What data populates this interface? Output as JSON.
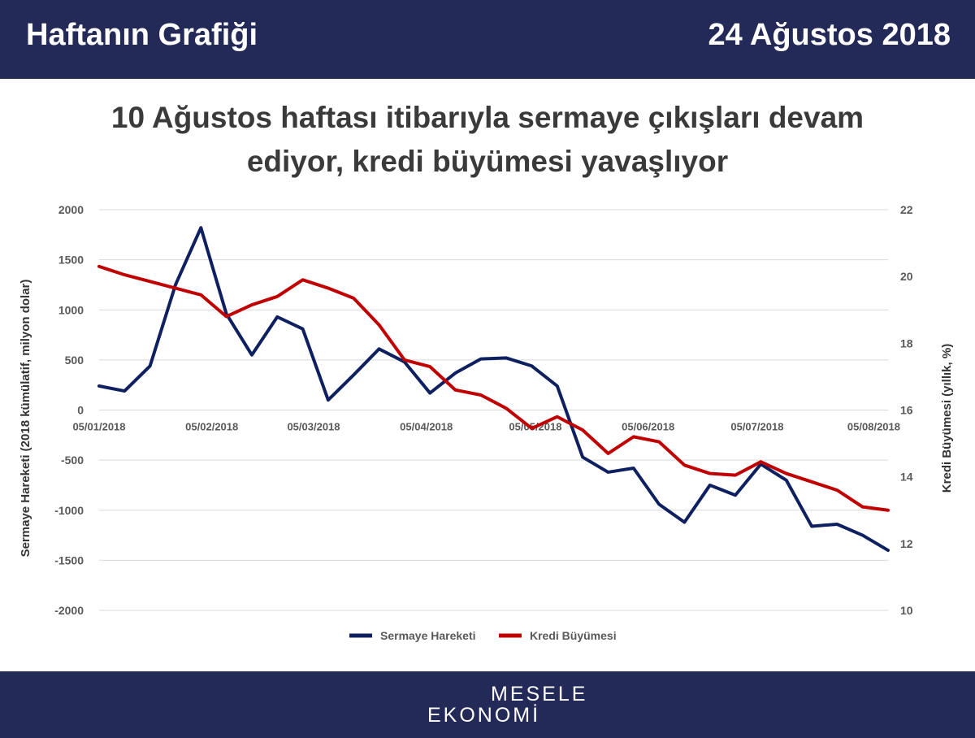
{
  "header": {
    "left_title": "Haftanın Grafiği",
    "date": "24 Ağustos 2018"
  },
  "chart_title": {
    "line1": "10 Ağustos haftası itibarıyla sermaye çıkışları devam",
    "line2": "ediyor, kredi büyümesi yavaşlıyor"
  },
  "footer": {
    "logo_line1": "MESELE",
    "logo_line2": "EKONOMİ"
  },
  "chart_data": {
    "type": "line",
    "title": "10 Ağustos haftası itibarıyla sermaye çıkışları devam ediyor, kredi büyümesi yavaşlıyor",
    "ylabel": "Sermaye Hareketi (2018 kümülatif, milyon dolar)",
    "y2label": "Kredi Büyümesi (yıllık, %)",
    "ylim": [
      -2000,
      2000
    ],
    "y2lim": [
      10,
      22
    ],
    "yticks": [
      2000,
      1500,
      1000,
      500,
      0,
      -500,
      -1000,
      -1500,
      -2000
    ],
    "y2ticks": [
      22,
      20,
      18,
      16,
      14,
      12,
      10
    ],
    "xticks": [
      "05/01/2018",
      "05/02/2018",
      "05/03/2018",
      "05/04/2018",
      "05/05/2018",
      "05/06/2018",
      "05/07/2018",
      "05/08/2018"
    ],
    "grid": true,
    "legend": "bottom",
    "colors": {
      "sermaye": "#0f2060",
      "kredi": "#c00000",
      "grid": "#d9d9d9",
      "text": "#595959"
    },
    "series": [
      {
        "name": "Sermaye Hareketi",
        "axis": "left",
        "x": [
          "05/01/2018",
          "12/01/2018",
          "19/01/2018",
          "26/01/2018",
          "02/02/2018",
          "09/02/2018",
          "16/02/2018",
          "23/02/2018",
          "02/03/2018",
          "09/03/2018",
          "16/03/2018",
          "23/03/2018",
          "30/03/2018",
          "06/04/2018",
          "13/04/2018",
          "20/04/2018",
          "27/04/2018",
          "04/05/2018",
          "11/05/2018",
          "18/05/2018",
          "25/05/2018",
          "01/06/2018",
          "08/06/2018",
          "15/06/2018",
          "22/06/2018",
          "29/06/2018",
          "06/07/2018",
          "13/07/2018",
          "20/07/2018",
          "27/07/2018",
          "03/08/2018",
          "10/08/2018"
        ],
        "values": [
          240,
          190,
          440,
          1250,
          1820,
          960,
          550,
          930,
          810,
          100,
          350,
          610,
          480,
          170,
          370,
          510,
          520,
          440,
          240,
          -470,
          -620,
          -580,
          -940,
          -1120,
          -750,
          -850,
          -540,
          -700,
          -1160,
          -1140,
          -1250,
          -1400
        ]
      },
      {
        "name": "Kredi Büyümesi",
        "axis": "right",
        "x": [
          "05/01/2018",
          "12/01/2018",
          "19/01/2018",
          "26/01/2018",
          "02/02/2018",
          "09/02/2018",
          "16/02/2018",
          "23/02/2018",
          "02/03/2018",
          "09/03/2018",
          "16/03/2018",
          "23/03/2018",
          "30/03/2018",
          "06/04/2018",
          "13/04/2018",
          "20/04/2018",
          "27/04/2018",
          "04/05/2018",
          "11/05/2018",
          "18/05/2018",
          "25/05/2018",
          "01/06/2018",
          "08/06/2018",
          "15/06/2018",
          "22/06/2018",
          "29/06/2018",
          "06/07/2018",
          "13/07/2018",
          "20/07/2018",
          "27/07/2018",
          "03/08/2018",
          "10/08/2018"
        ],
        "values": [
          20.3,
          20.05,
          19.85,
          19.65,
          19.45,
          18.8,
          19.15,
          19.4,
          19.9,
          19.65,
          19.35,
          18.55,
          17.5,
          17.3,
          16.6,
          16.45,
          16.05,
          15.45,
          15.8,
          15.4,
          14.7,
          15.2,
          15.05,
          14.35,
          14.1,
          14.05,
          14.45,
          14.1,
          13.85,
          13.6,
          13.1,
          13.0
        ]
      }
    ]
  }
}
